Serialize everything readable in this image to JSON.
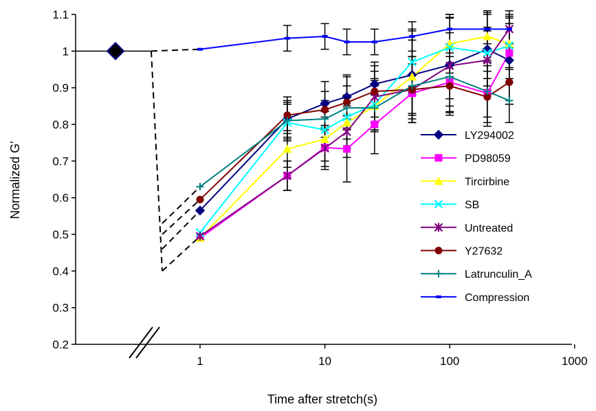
{
  "chart_data": {
    "type": "line",
    "xlabel": "Time after stretch(s)",
    "ylabel": "Normalized G'",
    "x_scale": "log",
    "xlim": [
      0.1,
      1000
    ],
    "ylim": [
      0.2,
      1.1
    ],
    "x_ticks": [
      1,
      10,
      100,
      1000
    ],
    "x_tick_labels": [
      "1",
      "10",
      "100",
      "1000"
    ],
    "y_ticks": [
      0.2,
      0.3,
      0.4,
      0.5,
      0.6,
      0.7,
      0.8,
      0.9,
      1,
      1.1
    ],
    "y_tick_labels": [
      "0.2",
      "0.3",
      "0.4",
      "0.5",
      "0.6",
      "0.7",
      "0.8",
      "0.9",
      "1",
      "1.1"
    ],
    "grid": false,
    "axis_break": true,
    "legend_position": "right",
    "baseline": {
      "value": 1.0,
      "marker": "diamond"
    },
    "x": [
      1,
      5,
      10,
      15,
      25,
      50,
      100,
      200,
      300
    ],
    "series": [
      {
        "name": "LY294002",
        "color": "#000080",
        "marker": "diamond",
        "values": [
          0.565,
          0.815,
          0.857,
          0.875,
          0.91,
          0.935,
          0.962,
          1.005,
          0.975
        ],
        "err": [
          null,
          0.05,
          0.06,
          0.06,
          0.06,
          0.12,
          0.13,
          0.1,
          0.12
        ]
      },
      {
        "name": "PD98059",
        "color": "#FF00FF",
        "marker": "square",
        "values": [
          0.49,
          0.66,
          0.737,
          0.733,
          0.8,
          0.885,
          0.915,
          0.885,
          0.995
        ],
        "err": [
          null,
          0.04,
          0.06,
          0.09,
          0.08,
          0.08,
          0.08,
          0.09,
          0.08
        ]
      },
      {
        "name": "Tircirbine",
        "color": "#FFFF00",
        "marker": "triangle",
        "values": [
          0.49,
          0.733,
          0.76,
          0.805,
          0.85,
          0.93,
          1.02,
          1.04,
          1.02
        ],
        "err": [
          null,
          0.05,
          0.06,
          0.07,
          0.07,
          0.1,
          0.08,
          0.07,
          0.07
        ]
      },
      {
        "name": "SB",
        "color": "#00FFFF",
        "marker": "x",
        "values": [
          0.505,
          0.805,
          0.785,
          0.82,
          0.855,
          0.97,
          1.01,
          0.995,
          1.015
        ],
        "err": [
          null,
          0.05,
          0.05,
          0.06,
          0.07,
          0.09,
          0.08,
          0.07,
          0.06
        ]
      },
      {
        "name": "Untreated",
        "color": "#800080",
        "marker": "star",
        "values": [
          0.495,
          0.66,
          0.735,
          0.78,
          0.875,
          0.895,
          0.96,
          0.975,
          1.06
        ],
        "err": [
          null,
          0.04,
          0.05,
          0.07,
          0.07,
          0.09,
          0.09,
          0.08,
          0.05
        ]
      },
      {
        "name": "Y27632",
        "color": "#800000",
        "marker": "circle",
        "values": [
          0.595,
          0.825,
          0.84,
          0.86,
          0.89,
          0.895,
          0.905,
          0.875,
          0.915
        ],
        "err": [
          null,
          0.05,
          0.05,
          0.07,
          0.07,
          0.09,
          0.08,
          0.07,
          0.06
        ]
      },
      {
        "name": "Latrunculin_A",
        "color": "#008080",
        "marker": "plus",
        "values": [
          0.63,
          0.81,
          0.815,
          0.845,
          0.845,
          0.905,
          0.93,
          0.89,
          0.865
        ],
        "err": [
          null,
          0.05,
          0.05,
          0.06,
          0.06,
          0.08,
          0.08,
          0.07,
          0.06
        ]
      },
      {
        "name": "Compression",
        "color": "#0000FF",
        "marker": "dash",
        "x": [
          1,
          5,
          10,
          15,
          25,
          50,
          100,
          200,
          300
        ],
        "values": [
          1.005,
          1.035,
          1.04,
          1.025,
          1.025,
          1.04,
          1.06,
          1.06,
          1.06
        ],
        "err": [
          null,
          0.035,
          0.035,
          0.035,
          0.035,
          0.04,
          0.04,
          0.04,
          0.04
        ]
      }
    ]
  }
}
